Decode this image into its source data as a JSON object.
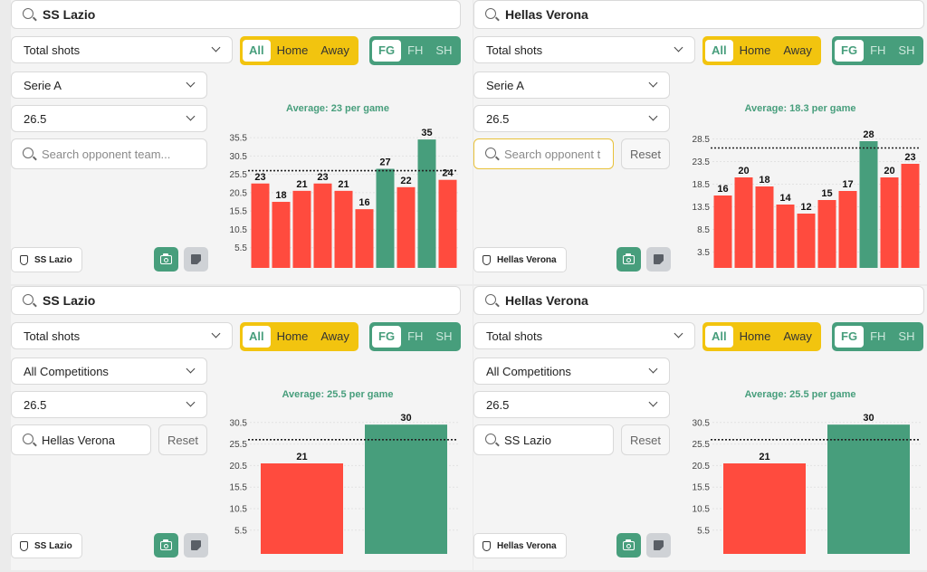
{
  "colors": {
    "over": "#479e7c",
    "under": "#ff4b3e",
    "yellow": "#f2c40f",
    "green": "#479e7c"
  },
  "panels": [
    {
      "team": "SS Lazio",
      "stat": "Total shots",
      "location": {
        "options": [
          "All",
          "Home",
          "Away"
        ],
        "active": "All"
      },
      "period": {
        "options": [
          "FG",
          "FH",
          "SH"
        ],
        "active": "FG"
      },
      "competition": "Serie A",
      "line": "26.5",
      "opponent": {
        "value": "",
        "placeholder": "Search opponent team...",
        "show_reset": false,
        "focused": false
      },
      "reset_label": "Reset",
      "badge": "SS Lazio",
      "average_label": "Average: 23 per game",
      "chart_data": {
        "type": "bar",
        "values": [
          23,
          18,
          21,
          23,
          21,
          16,
          27,
          22,
          35,
          24
        ],
        "yticks": [
          5.5,
          10.5,
          15.5,
          20.5,
          25.5,
          30.5,
          35.5
        ],
        "ylim": [
          0,
          37
        ],
        "threshold": 26.5
      }
    },
    {
      "team": "Hellas Verona",
      "stat": "Total shots",
      "location": {
        "options": [
          "All",
          "Home",
          "Away"
        ],
        "active": "All"
      },
      "period": {
        "options": [
          "FG",
          "FH",
          "SH"
        ],
        "active": "FG"
      },
      "competition": "Serie A",
      "line": "26.5",
      "opponent": {
        "value": "",
        "placeholder": "Search opponent t",
        "show_reset": true,
        "focused": true
      },
      "reset_label": "Reset",
      "badge": "Hellas Verona",
      "average_label": "Average: 18.3 per game",
      "chart_data": {
        "type": "bar",
        "values": [
          16,
          20,
          18,
          14,
          12,
          15,
          17,
          28,
          20,
          23
        ],
        "yticks": [
          3.5,
          8.5,
          13.5,
          18.5,
          23.5,
          28.5
        ],
        "ylim": [
          0,
          30
        ],
        "threshold": 26.5
      }
    },
    {
      "team": "SS Lazio",
      "stat": "Total shots",
      "location": {
        "options": [
          "All",
          "Home",
          "Away"
        ],
        "active": "All"
      },
      "period": {
        "options": [
          "FG",
          "FH",
          "SH"
        ],
        "active": "FG"
      },
      "competition": "All Competitions",
      "line": "26.5",
      "opponent": {
        "value": "Hellas Verona",
        "placeholder": "",
        "show_reset": true,
        "focused": false
      },
      "reset_label": "Reset",
      "badge": "SS Lazio",
      "average_label": "Average: 25.5 per game",
      "chart_data": {
        "type": "bar",
        "values": [
          21,
          30
        ],
        "yticks": [
          5.5,
          10.5,
          15.5,
          20.5,
          25.5,
          30.5
        ],
        "ylim": [
          0,
          31.5
        ],
        "threshold": 26.5
      }
    },
    {
      "team": "Hellas Verona",
      "stat": "Total shots",
      "location": {
        "options": [
          "All",
          "Home",
          "Away"
        ],
        "active": "All"
      },
      "period": {
        "options": [
          "FG",
          "FH",
          "SH"
        ],
        "active": "FG"
      },
      "competition": "All Competitions",
      "line": "26.5",
      "opponent": {
        "value": "SS Lazio",
        "placeholder": "",
        "show_reset": true,
        "focused": false
      },
      "reset_label": "Reset",
      "badge": "Hellas Verona",
      "average_label": "Average: 25.5 per game",
      "chart_data": {
        "type": "bar",
        "values": [
          21,
          30
        ],
        "yticks": [
          5.5,
          10.5,
          15.5,
          20.5,
          25.5,
          30.5
        ],
        "ylim": [
          0,
          31.5
        ],
        "threshold": 26.5
      }
    }
  ]
}
